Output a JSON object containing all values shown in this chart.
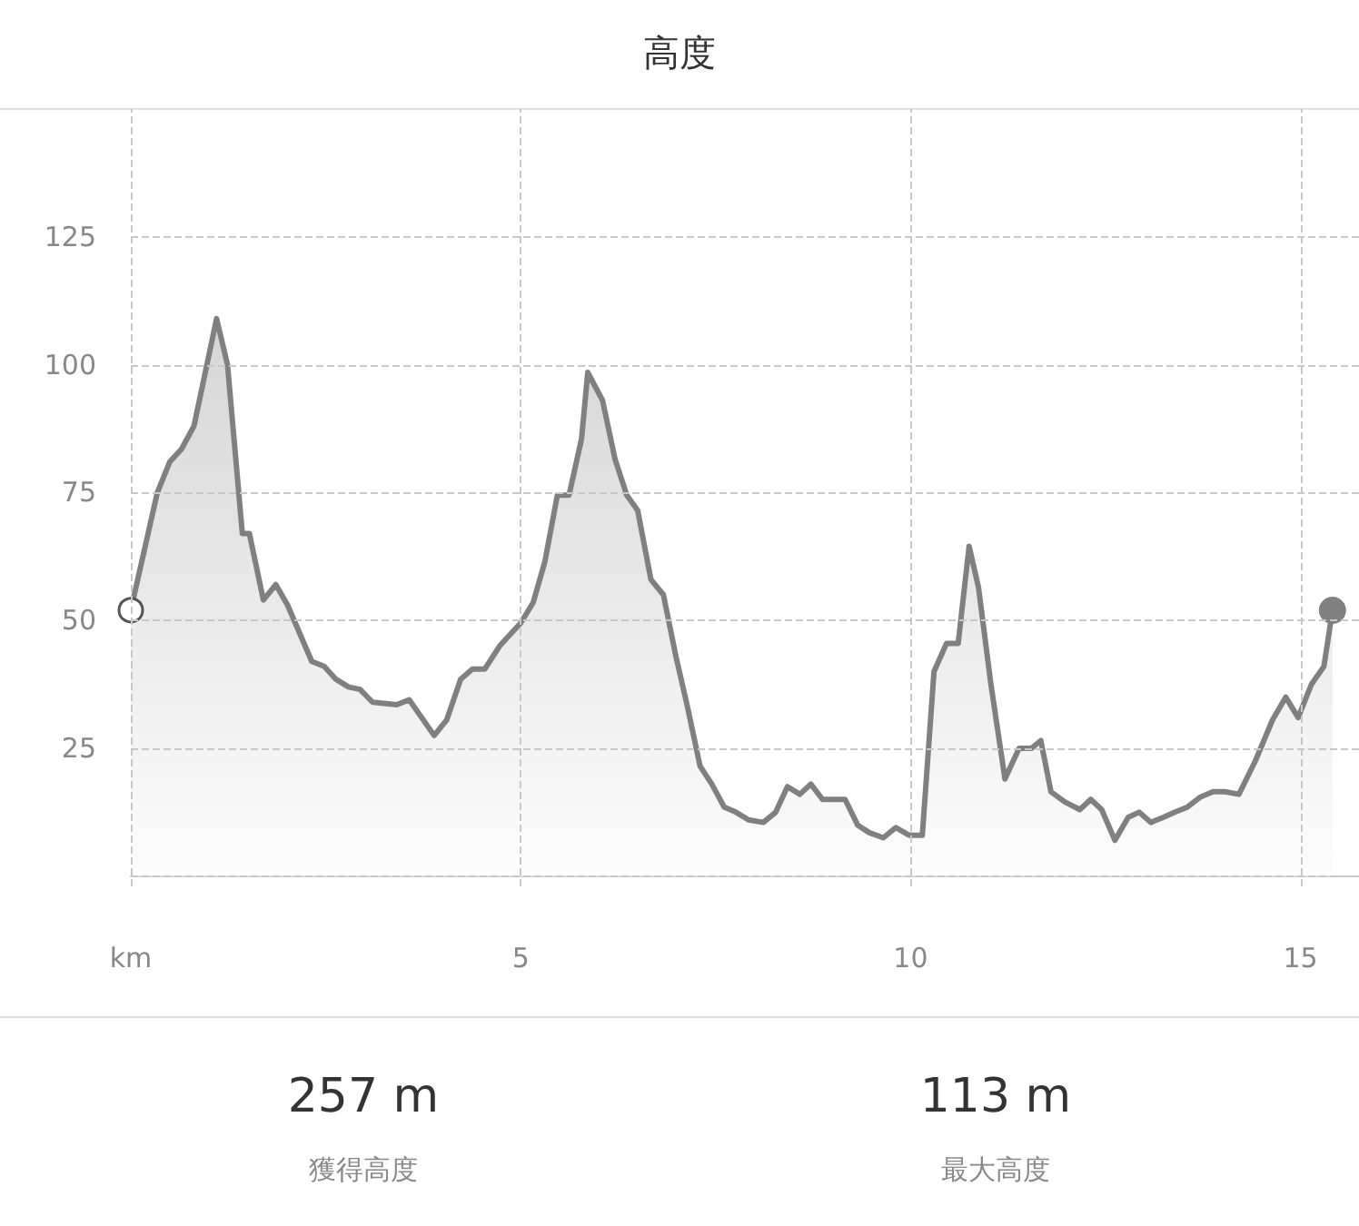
{
  "chart_data": {
    "type": "area",
    "title": "高度",
    "color": "#808080",
    "x": [
      0,
      0.34,
      0.5,
      0.65,
      0.81,
      1.1,
      1.24,
      1.43,
      1.52,
      1.7,
      1.86,
      2.01,
      2.32,
      2.48,
      2.63,
      2.79,
      2.94,
      3.1,
      3.41,
      3.57,
      3.89,
      4.05,
      4.23,
      4.38,
      4.54,
      4.73,
      5.0,
      5.16,
      5.31,
      5.47,
      5.62,
      5.78,
      5.86,
      6.05,
      6.21,
      6.36,
      6.5,
      6.67,
      6.83,
      6.99,
      7.14,
      7.3,
      7.45,
      7.61,
      7.76,
      7.92,
      8.11,
      8.27,
      8.42,
      8.58,
      8.72,
      8.87,
      9.04,
      9.16,
      9.32,
      9.47,
      9.65,
      9.81,
      9.98,
      10.15,
      10.3,
      10.46,
      10.61,
      10.75,
      10.87,
      11.03,
      11.21,
      11.39,
      11.55,
      11.67,
      11.8,
      11.98,
      12.17,
      12.31,
      12.45,
      12.62,
      12.79,
      12.93,
      13.08,
      13.24,
      13.39,
      13.55,
      13.72,
      13.88,
      14.03,
      14.21,
      14.42,
      14.64,
      14.81,
      14.97,
      15.14,
      15.3,
      15.41
    ],
    "values": [
      52,
      75,
      81,
      83.5,
      88,
      109,
      100,
      67,
      67,
      54,
      57,
      53,
      42,
      41,
      38.5,
      37,
      36.5,
      34,
      33.5,
      34.5,
      27.5,
      30.5,
      38.5,
      40.5,
      40.5,
      45,
      49.5,
      53.5,
      61.5,
      74.5,
      74.5,
      85.5,
      98.5,
      93,
      81.5,
      74.5,
      71.5,
      58,
      55,
      43,
      33,
      21.5,
      18,
      13.5,
      12.5,
      11,
      10.5,
      12.5,
      17.5,
      16,
      18,
      15,
      15,
      15,
      10,
      8.5,
      7.5,
      9.5,
      8,
      8,
      40,
      45.5,
      45.5,
      64.5,
      56.5,
      37.5,
      19,
      25,
      25,
      26.5,
      16.5,
      14.5,
      13,
      15,
      13,
      7,
      11.5,
      12.5,
      10.5,
      11.5,
      12.5,
      13.5,
      15.5,
      16.5,
      16.5,
      16,
      22.5,
      30.5,
      35,
      31,
      37.5,
      41,
      52
    ],
    "xlim": [
      0,
      15.75
    ],
    "xticks": [
      {
        "value": 0,
        "label": "km"
      },
      5,
      10,
      15
    ],
    "ylim": [
      -2,
      150
    ],
    "yticks": [
      {
        "value": 0,
        "label": null
      },
      25,
      50,
      75,
      100,
      125
    ],
    "grid": true,
    "annotations": [
      "257 m",
      "獲得高度",
      "113 m",
      "最大高度"
    ]
  }
}
